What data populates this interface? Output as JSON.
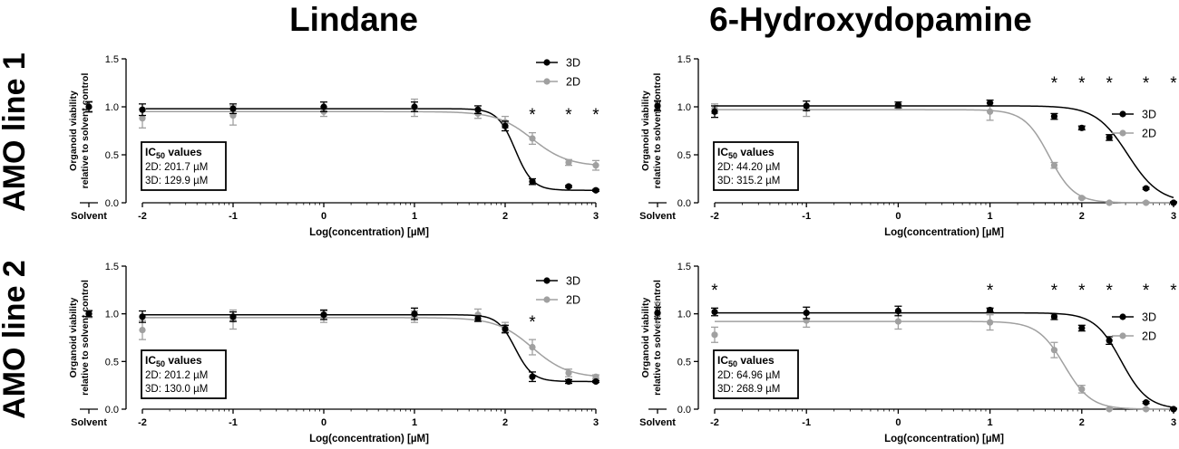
{
  "column_titles": [
    "Lindane",
    "6-Hydroxydopamine"
  ],
  "row_titles": [
    "AMO line 1",
    "AMO line 2"
  ],
  "chart_data": [
    {
      "type": "scatter",
      "panel": "AMO line 1 / Lindane",
      "xlabel": "Log(concentration) [µM]",
      "ylabel": [
        "Organoid viability",
        "relative to solvent control"
      ],
      "xlim": [
        -2,
        3
      ],
      "ylim": [
        0,
        1.5
      ],
      "x_ticks": [
        "Solvent",
        "-2",
        "-1",
        "0",
        "1",
        "2",
        "3"
      ],
      "y_ticks": [
        "0.0",
        "0.5",
        "1.0",
        "1.5"
      ],
      "legend_position": "top-right",
      "ic50_title": "IC",
      "ic50_sub": "50",
      "ic50_title_rest": " values",
      "ic50_lines": [
        "2D: 201.7 µM",
        "3D: 129.9 µM"
      ],
      "significance": [
        {
          "x": 2.3,
          "label": "*"
        },
        {
          "x": 2.7,
          "label": "*"
        },
        {
          "x": 3.0,
          "label": "*"
        }
      ],
      "series": [
        {
          "name": "3D",
          "color": "#000000",
          "solvent": {
            "y": 1.0,
            "err": 0.05
          },
          "points": [
            {
              "x": -2,
              "y": 0.97,
              "err": 0.06
            },
            {
              "x": -1,
              "y": 0.98,
              "err": 0.05
            },
            {
              "x": 0,
              "y": 1.0,
              "err": 0.05
            },
            {
              "x": 1,
              "y": 1.0,
              "err": 0.05
            },
            {
              "x": 1.7,
              "y": 0.97,
              "err": 0.04
            },
            {
              "x": 2,
              "y": 0.8,
              "err": 0.05
            },
            {
              "x": 2.3,
              "y": 0.22,
              "err": 0.03
            },
            {
              "x": 2.7,
              "y": 0.17,
              "err": 0.01
            },
            {
              "x": 3,
              "y": 0.13,
              "err": 0.01
            }
          ],
          "fit": {
            "top": 0.98,
            "bottom": 0.13,
            "logIC50": 2.11,
            "hill": 4.5
          }
        },
        {
          "name": "2D",
          "color": "#a0a0a0",
          "solvent": {
            "y": 1.0,
            "err": 0.06
          },
          "points": [
            {
              "x": -2,
              "y": 0.88,
              "err": 0.1
            },
            {
              "x": -1,
              "y": 0.91,
              "err": 0.1
            },
            {
              "x": 0,
              "y": 0.95,
              "err": 0.05
            },
            {
              "x": 1,
              "y": 0.99,
              "err": 0.09
            },
            {
              "x": 1.7,
              "y": 0.93,
              "err": 0.05
            },
            {
              "x": 2,
              "y": 0.84,
              "err": 0.06
            },
            {
              "x": 2.3,
              "y": 0.67,
              "err": 0.06
            },
            {
              "x": 2.7,
              "y": 0.42,
              "err": 0.03
            },
            {
              "x": 3,
              "y": 0.39,
              "err": 0.05
            }
          ],
          "fit": {
            "top": 0.95,
            "bottom": 0.38,
            "logIC50": 2.3,
            "hill": 2.2
          }
        }
      ]
    },
    {
      "type": "scatter",
      "panel": "AMO line 1 / 6-Hydroxydopamine",
      "xlabel": "Log(concentration) [µM]",
      "ylabel": [
        "Organoid viability",
        "relative to solvent control"
      ],
      "xlim": [
        -2,
        3
      ],
      "ylim": [
        0,
        1.5
      ],
      "x_ticks": [
        "Solvent",
        "-2",
        "-1",
        "0",
        "1",
        "2",
        "3"
      ],
      "y_ticks": [
        "0.0",
        "0.5",
        "1.0",
        "1.5"
      ],
      "legend_position": "right",
      "ic50_title": "IC",
      "ic50_sub": "50",
      "ic50_title_rest": " values",
      "ic50_lines": [
        "2D: 44.20 µM",
        "3D: 315.2 µM"
      ],
      "significance": [
        {
          "x": 1.7,
          "label": "*"
        },
        {
          "x": 2.0,
          "label": "*"
        },
        {
          "x": 2.3,
          "label": "*"
        },
        {
          "x": 2.7,
          "label": "*"
        },
        {
          "x": 3.0,
          "label": "*"
        }
      ],
      "series": [
        {
          "name": "3D",
          "color": "#000000",
          "solvent": {
            "y": 1.01,
            "err": 0.05
          },
          "points": [
            {
              "x": -2,
              "y": 0.95,
              "err": 0.06
            },
            {
              "x": -1,
              "y": 1.01,
              "err": 0.05
            },
            {
              "x": 0,
              "y": 1.02,
              "err": 0.03
            },
            {
              "x": 1,
              "y": 1.04,
              "err": 0.03
            },
            {
              "x": 1.7,
              "y": 0.9,
              "err": 0.03
            },
            {
              "x": 2,
              "y": 0.78,
              "err": 0.02
            },
            {
              "x": 2.3,
              "y": 0.68,
              "err": 0.03
            },
            {
              "x": 2.7,
              "y": 0.15,
              "err": 0.01
            },
            {
              "x": 3,
              "y": 0.0,
              "err": 0.01
            }
          ],
          "fit": {
            "top": 1.01,
            "bottom": 0.0,
            "logIC50": 2.5,
            "hill": 2.5
          }
        },
        {
          "name": "2D",
          "color": "#a0a0a0",
          "solvent": {
            "y": 1.01,
            "err": 0.06
          },
          "points": [
            {
              "x": -2,
              "y": 0.98,
              "err": 0.05
            },
            {
              "x": -1,
              "y": 0.98,
              "err": 0.08
            },
            {
              "x": 0,
              "y": 1.0,
              "err": 0.03
            },
            {
              "x": 1,
              "y": 0.95,
              "err": 0.09
            },
            {
              "x": 1.7,
              "y": 0.39,
              "err": 0.03
            },
            {
              "x": 2,
              "y": 0.05,
              "err": 0.01
            },
            {
              "x": 2.3,
              "y": 0.0,
              "err": 0.01
            },
            {
              "x": 2.7,
              "y": 0.0,
              "err": 0.01
            },
            {
              "x": 3,
              "y": 0.0,
              "err": 0.01
            }
          ],
          "fit": {
            "top": 0.97,
            "bottom": 0.0,
            "logIC50": 1.645,
            "hill": 3.2
          }
        }
      ]
    },
    {
      "type": "scatter",
      "panel": "AMO line 2 / Lindane",
      "xlabel": "Log(concentration) [µM]",
      "ylabel": [
        "Organoid viability",
        "relative to solvent control"
      ],
      "xlim": [
        -2,
        3
      ],
      "ylim": [
        0,
        1.5
      ],
      "x_ticks": [
        "Solvent",
        "-2",
        "-1",
        "0",
        "1",
        "2",
        "3"
      ],
      "y_ticks": [
        "0.0",
        "0.5",
        "1.0",
        "1.5"
      ],
      "legend_position": "top-right",
      "ic50_title": "IC",
      "ic50_sub": "50",
      "ic50_title_rest": " values",
      "ic50_lines": [
        "2D: 201.2 µM",
        "3D: 130.0 µM"
      ],
      "significance": [
        {
          "x": 2.3,
          "label": "*"
        }
      ],
      "series": [
        {
          "name": "3D",
          "color": "#000000",
          "solvent": {
            "y": 1.0,
            "err": 0.03
          },
          "points": [
            {
              "x": -2,
              "y": 0.97,
              "err": 0.06
            },
            {
              "x": -1,
              "y": 0.97,
              "err": 0.05
            },
            {
              "x": 0,
              "y": 0.99,
              "err": 0.05
            },
            {
              "x": 1,
              "y": 1.0,
              "err": 0.06
            },
            {
              "x": 1.7,
              "y": 0.95,
              "err": 0.03
            },
            {
              "x": 2,
              "y": 0.84,
              "err": 0.04
            },
            {
              "x": 2.3,
              "y": 0.34,
              "err": 0.05
            },
            {
              "x": 2.7,
              "y": 0.29,
              "err": 0.02
            },
            {
              "x": 3,
              "y": 0.29,
              "err": 0.01
            }
          ],
          "fit": {
            "top": 0.99,
            "bottom": 0.29,
            "logIC50": 2.11,
            "hill": 4.5
          }
        },
        {
          "name": "2D",
          "color": "#a0a0a0",
          "solvent": {
            "y": 1.0,
            "err": 0.04
          },
          "points": [
            {
              "x": -2,
              "y": 0.83,
              "err": 0.1
            },
            {
              "x": -1,
              "y": 0.94,
              "err": 0.1
            },
            {
              "x": 0,
              "y": 0.97,
              "err": 0.06
            },
            {
              "x": 1,
              "y": 0.97,
              "err": 0.06
            },
            {
              "x": 1.7,
              "y": 0.99,
              "err": 0.06
            },
            {
              "x": 2,
              "y": 0.86,
              "err": 0.05
            },
            {
              "x": 2.3,
              "y": 0.65,
              "err": 0.08
            },
            {
              "x": 2.7,
              "y": 0.38,
              "err": 0.04
            },
            {
              "x": 3,
              "y": 0.34,
              "err": 0.02
            }
          ],
          "fit": {
            "top": 0.96,
            "bottom": 0.33,
            "logIC50": 2.3,
            "hill": 2.2
          }
        }
      ]
    },
    {
      "type": "scatter",
      "panel": "AMO line 2 / 6-Hydroxydopamine",
      "xlabel": "Log(concentration) [µM]",
      "ylabel": [
        "Organoid viability",
        "relative to solvent control"
      ],
      "xlim": [
        -2,
        3
      ],
      "ylim": [
        0,
        1.5
      ],
      "x_ticks": [
        "Solvent",
        "-2",
        "-1",
        "0",
        "1",
        "2",
        "3"
      ],
      "y_ticks": [
        "0.0",
        "0.5",
        "1.0",
        "1.5"
      ],
      "legend_position": "right",
      "ic50_title": "IC",
      "ic50_sub": "50",
      "ic50_title_rest": " values",
      "ic50_lines": [
        "2D: 64.96 µM",
        "3D: 268.9 µM"
      ],
      "significance": [
        {
          "x": -2.0,
          "label": "*"
        },
        {
          "x": 1.0,
          "label": "*"
        },
        {
          "x": 1.7,
          "label": "*"
        },
        {
          "x": 2.0,
          "label": "*"
        },
        {
          "x": 2.3,
          "label": "*"
        },
        {
          "x": 2.7,
          "label": "*"
        },
        {
          "x": 3.0,
          "label": "*"
        }
      ],
      "series": [
        {
          "name": "3D",
          "color": "#000000",
          "solvent": {
            "y": 1.01,
            "err": 0.06
          },
          "points": [
            {
              "x": -2,
              "y": 1.02,
              "err": 0.04
            },
            {
              "x": -1,
              "y": 1.01,
              "err": 0.06
            },
            {
              "x": 0,
              "y": 1.03,
              "err": 0.05
            },
            {
              "x": 1,
              "y": 1.04,
              "err": 0.02
            },
            {
              "x": 1.7,
              "y": 0.97,
              "err": 0.03
            },
            {
              "x": 2,
              "y": 0.85,
              "err": 0.03
            },
            {
              "x": 2.3,
              "y": 0.72,
              "err": 0.04
            },
            {
              "x": 2.7,
              "y": 0.07,
              "err": 0.01
            },
            {
              "x": 3,
              "y": 0.0,
              "err": 0.01
            }
          ],
          "fit": {
            "top": 1.01,
            "bottom": 0.0,
            "logIC50": 2.43,
            "hill": 3.0
          }
        },
        {
          "name": "2D",
          "color": "#a0a0a0",
          "solvent": {
            "y": 1.0,
            "err": 0.12
          },
          "points": [
            {
              "x": -2,
              "y": 0.78,
              "err": 0.08
            },
            {
              "x": -1,
              "y": 0.93,
              "err": 0.07
            },
            {
              "x": 0,
              "y": 0.92,
              "err": 0.08
            },
            {
              "x": 1,
              "y": 0.91,
              "err": 0.08
            },
            {
              "x": 1.7,
              "y": 0.62,
              "err": 0.08
            },
            {
              "x": 2,
              "y": 0.21,
              "err": 0.04
            },
            {
              "x": 2.3,
              "y": 0.0,
              "err": 0.01
            },
            {
              "x": 2.7,
              "y": 0.0,
              "err": 0.01
            },
            {
              "x": 3,
              "y": 0.0,
              "err": 0.01
            }
          ],
          "fit": {
            "top": 0.92,
            "bottom": 0.0,
            "logIC50": 1.81,
            "hill": 3.0
          }
        }
      ]
    }
  ]
}
